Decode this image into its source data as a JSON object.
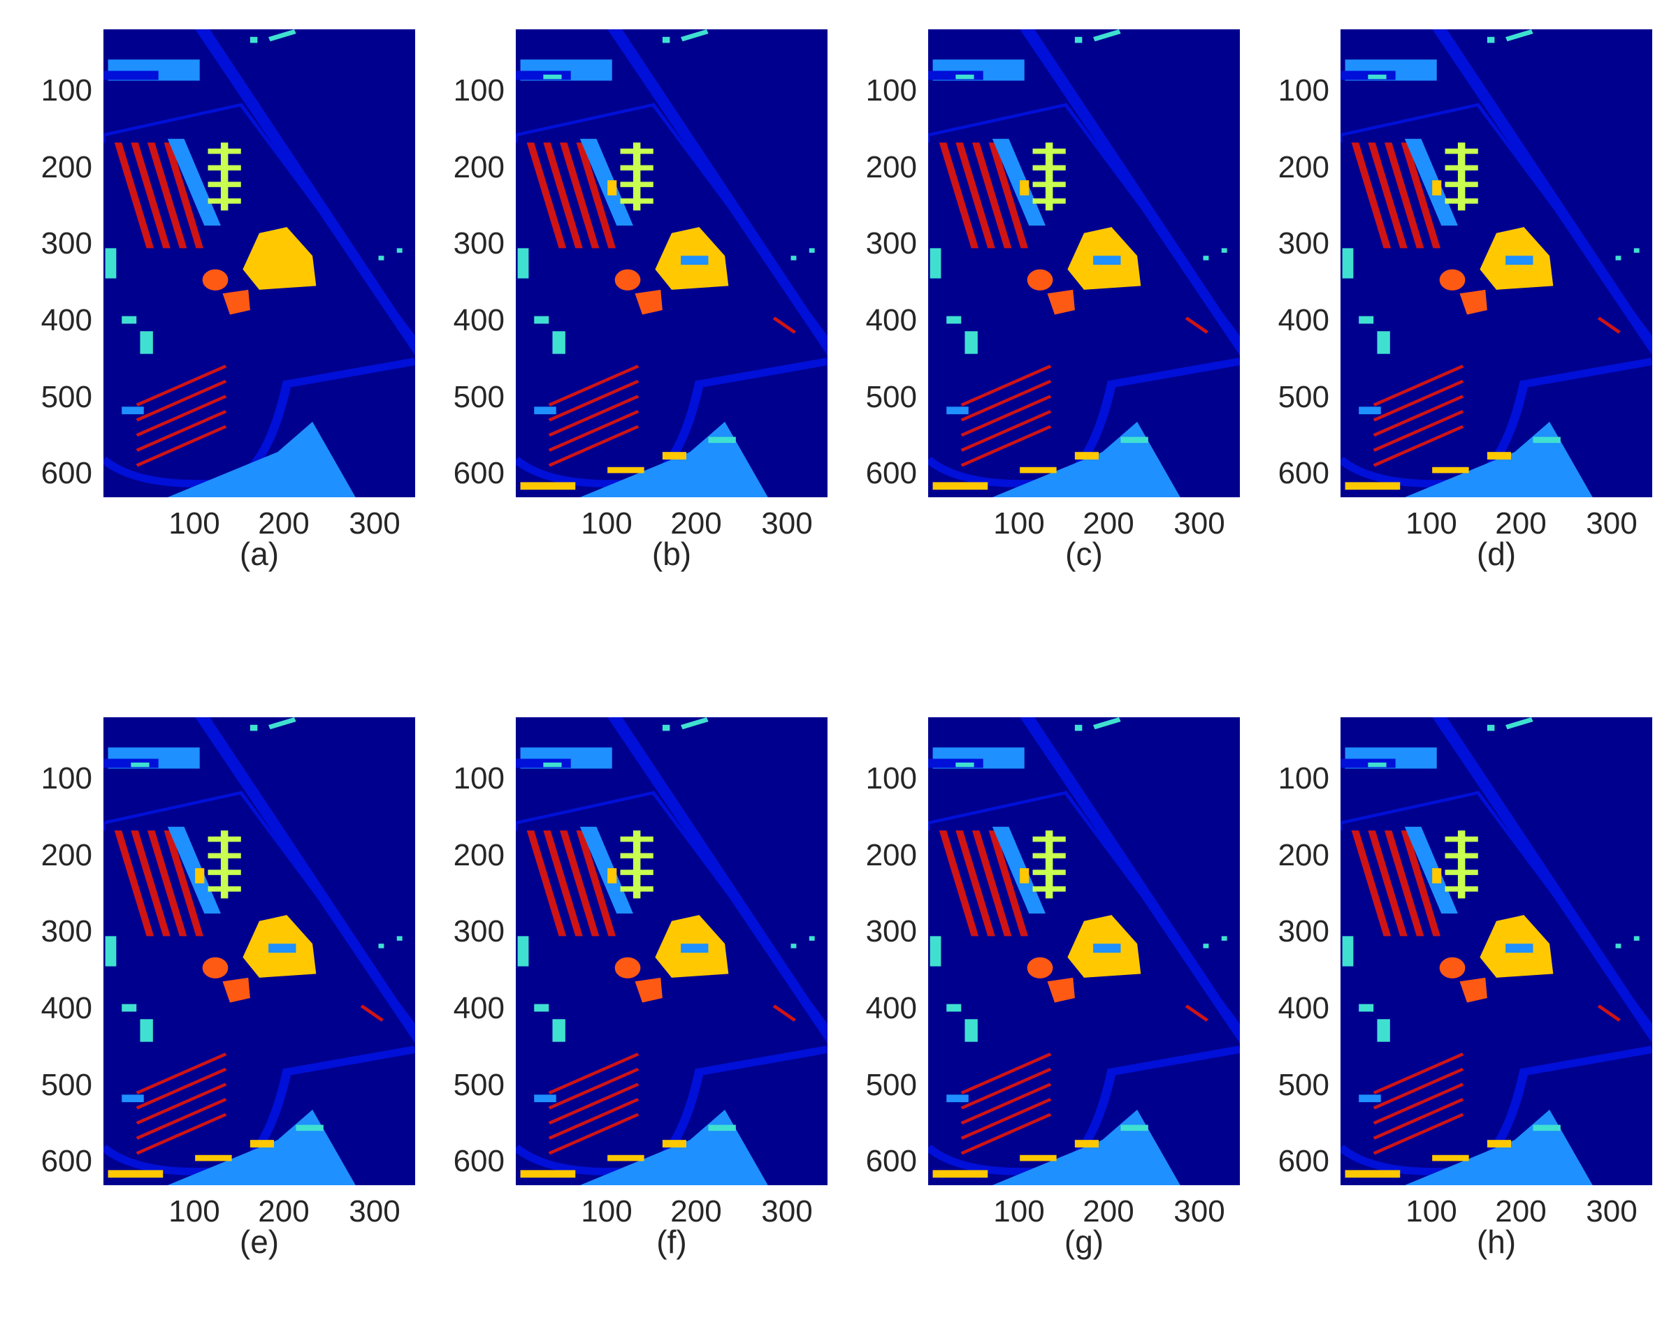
{
  "figure": {
    "panels": [
      {
        "label": "(a)",
        "variant": "ground-truth"
      },
      {
        "label": "(b)",
        "variant": "noisy"
      },
      {
        "label": "(c)",
        "variant": "noisy"
      },
      {
        "label": "(d)",
        "variant": "noisy"
      },
      {
        "label": "(e)",
        "variant": "noisy"
      },
      {
        "label": "(f)",
        "variant": "noisy"
      },
      {
        "label": "(g)",
        "variant": "noisy"
      },
      {
        "label": "(h)",
        "variant": "noisy"
      }
    ],
    "y_ticks": [
      "100",
      "200",
      "300",
      "400",
      "500",
      "600"
    ],
    "x_ticks": [
      "100",
      "200",
      "300"
    ],
    "colors": {
      "background": "#00008f",
      "road": "#0010d8",
      "light_blue": "#1e90ff",
      "cyan": "#40e0d0",
      "red": "#d01414",
      "yellow": "#ffc800",
      "yellow_green": "#c8ff50",
      "orange": "#ff5a14"
    }
  }
}
